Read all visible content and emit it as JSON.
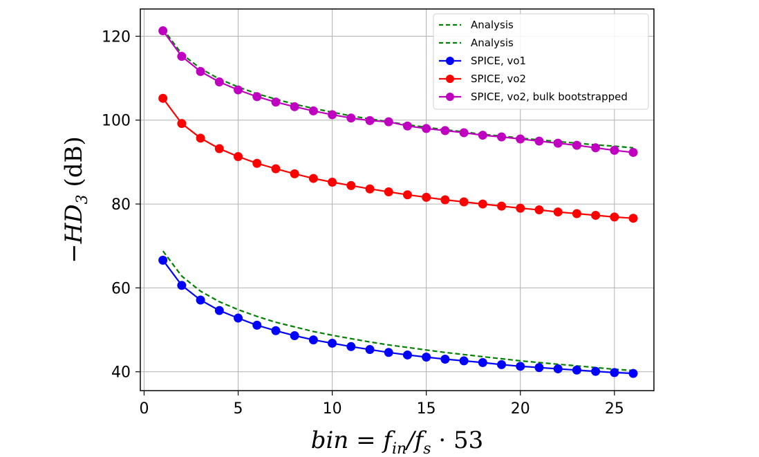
{
  "chart_data": {
    "type": "line",
    "xlabel": "bin = f_in/f_s · 53",
    "ylabel": "−HD_3 (dB)",
    "xlim": [
      -0.2,
      27.1
    ],
    "ylim": [
      35.5,
      126.5
    ],
    "xticks": [
      0,
      5,
      10,
      15,
      20,
      25
    ],
    "yticks": [
      40,
      60,
      80,
      100,
      120
    ],
    "grid": true,
    "legend_position": "top-right",
    "x": [
      1,
      2,
      3,
      4,
      5,
      6,
      7,
      8,
      9,
      10,
      11,
      12,
      13,
      14,
      15,
      16,
      17,
      18,
      19,
      20,
      21,
      22,
      23,
      24,
      25,
      26
    ],
    "series": [
      {
        "name": "Analysis",
        "color": "#008000",
        "style": "dashed",
        "marker": "none",
        "values": [
          121.8,
          115.8,
          112.3,
          109.8,
          107.9,
          106.3,
          105.0,
          103.8,
          102.8,
          101.9,
          101.0,
          100.3,
          99.6,
          98.9,
          98.3,
          97.7,
          97.2,
          96.6,
          96.2,
          95.7,
          95.3,
          94.9,
          94.5,
          94.1,
          93.8,
          93.4
        ]
      },
      {
        "name": "Analysis",
        "color": "#008000",
        "style": "dashed",
        "marker": "none",
        "values": [
          68.8,
          62.8,
          59.2,
          56.7,
          54.8,
          53.2,
          51.8,
          50.7,
          49.6,
          48.7,
          47.9,
          47.1,
          46.4,
          45.8,
          45.2,
          44.6,
          44.1,
          43.6,
          43.1,
          42.6,
          42.2,
          41.8,
          41.4,
          41.0,
          40.6,
          40.3
        ]
      },
      {
        "name": "SPICE, vo1",
        "color": "#0000ff",
        "style": "solid",
        "marker": "circle",
        "values": [
          66.6,
          60.6,
          57.1,
          54.6,
          52.8,
          51.1,
          49.8,
          48.6,
          47.6,
          46.8,
          46.0,
          45.3,
          44.6,
          44.0,
          43.5,
          43.0,
          42.6,
          42.2,
          41.7,
          41.3,
          41.0,
          40.7,
          40.4,
          40.1,
          39.8,
          39.6
        ]
      },
      {
        "name": "SPICE, vo2",
        "color": "#ff0000",
        "style": "solid",
        "marker": "circle",
        "values": [
          105.2,
          99.2,
          95.7,
          93.2,
          91.3,
          89.7,
          88.4,
          87.2,
          86.1,
          85.2,
          84.4,
          83.6,
          82.9,
          82.2,
          81.6,
          81.0,
          80.5,
          80.0,
          79.5,
          79.0,
          78.6,
          78.1,
          77.7,
          77.3,
          76.9,
          76.6
        ]
      },
      {
        "name": "SPICE, vo2, bulk bootstrapped",
        "color": "#c000c0",
        "style": "solid",
        "marker": "circle",
        "values": [
          121.3,
          115.2,
          111.6,
          109.1,
          107.2,
          105.6,
          104.3,
          103.2,
          102.2,
          101.3,
          100.5,
          99.9,
          99.6,
          98.6,
          98.0,
          97.5,
          97.0,
          96.4,
          96.0,
          95.5,
          95.0,
          94.5,
          94.0,
          93.4,
          92.8,
          92.3
        ]
      }
    ]
  }
}
